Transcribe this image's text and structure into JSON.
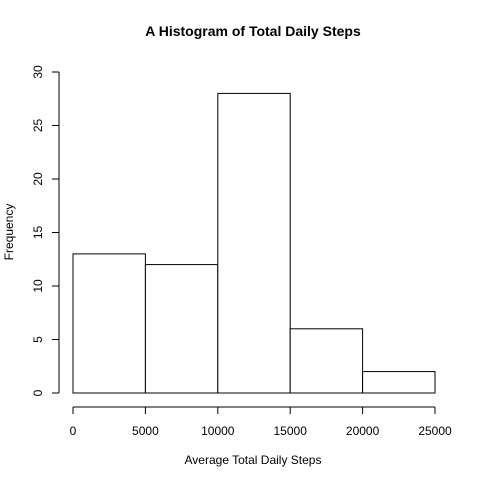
{
  "chart_data": {
    "type": "bar",
    "title": "A Histogram of Total Daily Steps",
    "xlabel": "Average Total Daily Steps",
    "ylabel": "Frequency",
    "bins": [
      {
        "from": 0,
        "to": 5000,
        "count": 13
      },
      {
        "from": 5000,
        "to": 10000,
        "count": 12
      },
      {
        "from": 10000,
        "to": 15000,
        "count": 28
      },
      {
        "from": 15000,
        "to": 20000,
        "count": 6
      },
      {
        "from": 20000,
        "to": 25000,
        "count": 2
      }
    ],
    "xlim": [
      0,
      25000
    ],
    "ylim": [
      0,
      30
    ],
    "xticks": [
      0,
      5000,
      10000,
      15000,
      20000,
      25000
    ],
    "yticks": [
      0,
      5,
      10,
      15,
      20,
      25,
      30
    ],
    "grid": false
  }
}
